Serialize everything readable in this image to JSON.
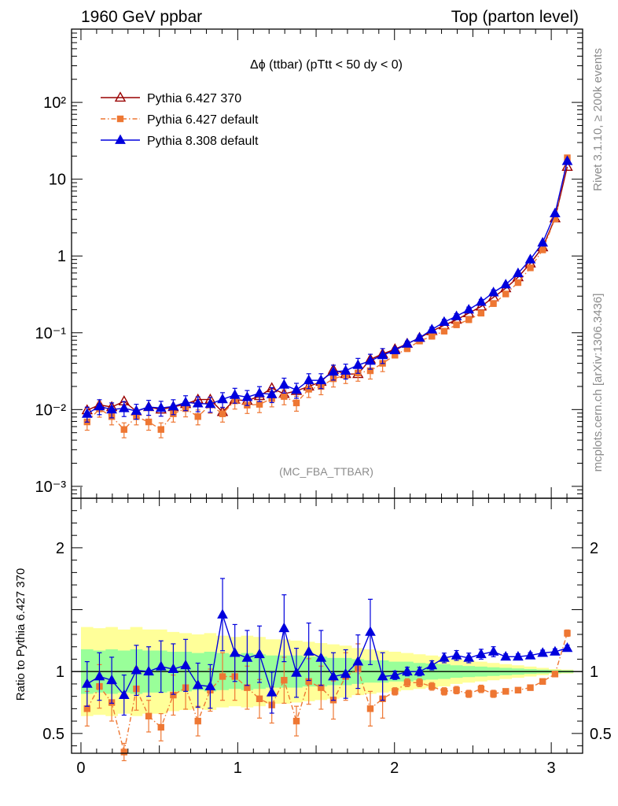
{
  "header": {
    "left": "1960 GeV ppbar",
    "right": "Top (parton level)"
  },
  "side_labels": {
    "rivet": "Rivet 3.1.10, ≥ 200k events",
    "mcplots": "mcplots.cern.ch [arXiv:1306.3436]"
  },
  "chart_data": [
    {
      "type": "line",
      "panel": "main",
      "title": "Δϕ (ttbar) (pTtt < 50 dy < 0)",
      "annotation": "(MC_FBA_TTBAR)",
      "yscale": "log",
      "xlim": [
        -0.06,
        3.2
      ],
      "ylim": [
        0.0007,
        900
      ],
      "yticks": [
        0.001,
        0.01,
        0.1,
        1,
        10,
        100
      ],
      "ytick_labels": [
        "10⁻³",
        "10⁻²",
        "10⁻¹",
        "1",
        "10",
        "10²"
      ],
      "legend_position": "top-left",
      "x": [
        0.0393,
        0.1178,
        0.1963,
        0.2749,
        0.3534,
        0.432,
        0.5105,
        0.589,
        0.6676,
        0.7461,
        0.8247,
        0.9032,
        0.9817,
        1.0603,
        1.1388,
        1.2174,
        1.2959,
        1.3744,
        1.453,
        1.5315,
        1.6101,
        1.6886,
        1.7671,
        1.8457,
        1.9242,
        2.0028,
        2.0813,
        2.1598,
        2.2384,
        2.3169,
        2.3955,
        2.474,
        2.5525,
        2.6311,
        2.7096,
        2.7882,
        2.8667,
        2.9452,
        3.0238,
        3.1023
      ],
      "series": [
        {
          "name": "Pythia 6.427 370",
          "color": "#990000",
          "marker": "open-triangle",
          "line": "solid",
          "values": [
            0.0098,
            0.0115,
            0.0108,
            0.0128,
            0.0095,
            0.0108,
            0.01,
            0.0108,
            0.0118,
            0.0135,
            0.0135,
            0.0093,
            0.0135,
            0.013,
            0.015,
            0.019,
            0.016,
            0.0175,
            0.02,
            0.023,
            0.033,
            0.029,
            0.029,
            0.045,
            0.053,
            0.061,
            0.072,
            0.086,
            0.105,
            0.125,
            0.148,
            0.18,
            0.22,
            0.29,
            0.38,
            0.53,
            0.8,
            1.3,
            3.1,
            14.5
          ]
        },
        {
          "name": "Pythia 6.427 default",
          "color": "#ee7733",
          "marker": "filled-square",
          "line": "dashdot",
          "values": [
            0.0069,
            0.0102,
            0.0081,
            0.0055,
            0.0081,
            0.0069,
            0.0055,
            0.0088,
            0.0103,
            0.0081,
            0.0115,
            0.0088,
            0.013,
            0.0114,
            0.0117,
            0.0139,
            0.0148,
            0.0122,
            0.0184,
            0.02,
            0.0252,
            0.028,
            0.03,
            0.032,
            0.04,
            0.051,
            0.062,
            0.078,
            0.09,
            0.105,
            0.127,
            0.148,
            0.18,
            0.24,
            0.32,
            0.45,
            0.7,
            1.2,
            3.05,
            19.0
          ]
        },
        {
          "name": "Pythia 8.308 default",
          "color": "#0000dd",
          "marker": "filled-triangle",
          "line": "solid",
          "values": [
            0.0088,
            0.011,
            0.01,
            0.0104,
            0.0096,
            0.0108,
            0.0105,
            0.011,
            0.0124,
            0.012,
            0.0118,
            0.0136,
            0.0155,
            0.0145,
            0.0163,
            0.0158,
            0.021,
            0.018,
            0.024,
            0.024,
            0.031,
            0.032,
            0.038,
            0.043,
            0.051,
            0.059,
            0.072,
            0.086,
            0.11,
            0.138,
            0.164,
            0.2,
            0.252,
            0.335,
            0.425,
            0.595,
            0.9,
            1.49,
            3.59,
            17.2
          ]
        }
      ]
    },
    {
      "type": "line",
      "panel": "ratio",
      "ylabel": "Ratio to Pythia 6.427 370",
      "xlim": [
        -0.06,
        3.2
      ],
      "ylim": [
        0.34,
        2.4
      ],
      "yticks": [
        0.5,
        1,
        2
      ],
      "ytick_labels": [
        "0.5",
        "1",
        "2"
      ],
      "xticks": [
        0,
        1,
        2,
        3
      ],
      "xtick_labels": [
        "0",
        "1",
        "2",
        "3"
      ],
      "reference": 1,
      "x": [
        0.0393,
        0.1178,
        0.1963,
        0.2749,
        0.3534,
        0.432,
        0.5105,
        0.589,
        0.6676,
        0.7461,
        0.8247,
        0.9032,
        0.9817,
        1.0603,
        1.1388,
        1.2174,
        1.2959,
        1.3744,
        1.453,
        1.5315,
        1.6101,
        1.6886,
        1.7671,
        1.8457,
        1.9242,
        2.0028,
        2.0813,
        2.1598,
        2.2384,
        2.3169,
        2.3955,
        2.474,
        2.5525,
        2.6311,
        2.7096,
        2.7882,
        2.8667,
        2.9452,
        3.0238,
        3.1023
      ],
      "band_inner": [
        0.18,
        0.17,
        0.18,
        0.17,
        0.18,
        0.17,
        0.17,
        0.16,
        0.16,
        0.15,
        0.16,
        0.15,
        0.14,
        0.15,
        0.14,
        0.13,
        0.13,
        0.13,
        0.12,
        0.12,
        0.11,
        0.11,
        0.1,
        0.09,
        0.09,
        0.08,
        0.08,
        0.07,
        0.065,
        0.06,
        0.05,
        0.045,
        0.04,
        0.035,
        0.03,
        0.025,
        0.02,
        0.015,
        0.012,
        0.01
      ],
      "band_outer": [
        0.36,
        0.35,
        0.36,
        0.34,
        0.36,
        0.34,
        0.34,
        0.32,
        0.31,
        0.3,
        0.31,
        0.29,
        0.28,
        0.29,
        0.28,
        0.26,
        0.26,
        0.25,
        0.24,
        0.23,
        0.22,
        0.21,
        0.19,
        0.18,
        0.17,
        0.16,
        0.15,
        0.14,
        0.13,
        0.12,
        0.1,
        0.09,
        0.08,
        0.07,
        0.06,
        0.05,
        0.04,
        0.03,
        0.02,
        0.015
      ],
      "series": [
        {
          "name": "Pythia 6.427 default",
          "color": "#ee7733",
          "marker": "filled-square",
          "line": "dashdot",
          "values": [
            0.7,
            0.88,
            0.75,
            0.35,
            0.86,
            0.64,
            0.55,
            0.81,
            0.87,
            0.6,
            0.85,
            0.96,
            0.96,
            0.87,
            0.78,
            0.73,
            0.93,
            0.6,
            0.92,
            0.87,
            0.77,
            0.96,
            1.02,
            0.7,
            0.78,
            0.84,
            0.91,
            0.91,
            0.88,
            0.84,
            0.85,
            0.82,
            0.86,
            0.82,
            0.84,
            0.85,
            0.87,
            0.92,
            0.98,
            1.31
          ]
        },
        {
          "name": "Pythia 8.308 default",
          "color": "#0000dd",
          "marker": "filled-triangle",
          "line": "solid",
          "values": [
            0.9,
            0.96,
            0.93,
            0.81,
            1.01,
            1.0,
            1.04,
            1.02,
            1.05,
            0.89,
            0.88,
            1.46,
            1.15,
            1.11,
            1.14,
            0.83,
            1.35,
            0.99,
            1.16,
            1.11,
            0.96,
            0.98,
            1.08,
            1.32,
            0.96,
            0.97,
            1.0,
            1.0,
            1.05,
            1.11,
            1.13,
            1.11,
            1.14,
            1.16,
            1.12,
            1.12,
            1.13,
            1.15,
            1.16,
            1.19
          ]
        }
      ]
    }
  ]
}
